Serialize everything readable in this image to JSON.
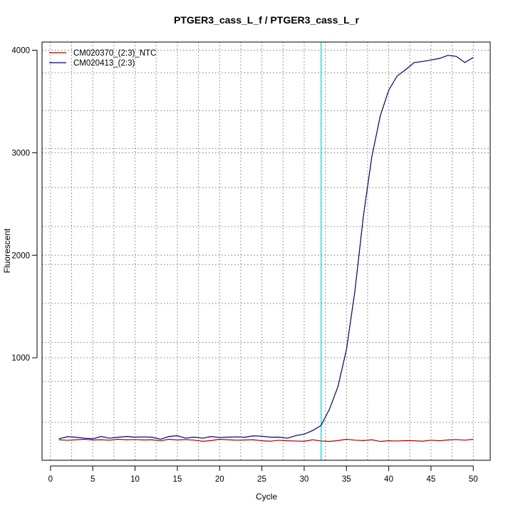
{
  "chart_data": {
    "type": "line",
    "title": "PTGER3_cass_L_f / PTGER3_cass_L_r",
    "xlabel": "Cycle",
    "ylabel": "Fluorescent",
    "xlim": [
      -1,
      52
    ],
    "ylim": [
      0,
      4080
    ],
    "x_ticks": [
      0,
      5,
      10,
      15,
      20,
      25,
      30,
      35,
      40,
      45,
      50
    ],
    "y_ticks": [
      1000,
      2000,
      3000,
      4000
    ],
    "grid_x": [
      2.5,
      7.5,
      12.5,
      17.5,
      22.5,
      27.5,
      32.5,
      37.5,
      42.5,
      47.5
    ],
    "grid_y": [
      370,
      770,
      1150,
      1530,
      1910,
      2280,
      2660,
      3040,
      3410,
      3780
    ],
    "grid": true,
    "legend_position": "top-left",
    "threshold": {
      "x": 32,
      "color": "#00e0e0"
    },
    "x": [
      1,
      2,
      3,
      4,
      5,
      6,
      7,
      8,
      9,
      10,
      11,
      12,
      13,
      14,
      15,
      16,
      17,
      18,
      19,
      20,
      21,
      22,
      23,
      24,
      25,
      26,
      27,
      28,
      29,
      30,
      31,
      32,
      33,
      34,
      35,
      36,
      37,
      38,
      39,
      40,
      41,
      42,
      43,
      44,
      45,
      46,
      47,
      48,
      49,
      50
    ],
    "series": [
      {
        "name": "CM020370_(2:3)_NTC",
        "color": "#aa0000",
        "values": [
          200,
          195,
          200,
          205,
          198,
          200,
          196,
          205,
          200,
          202,
          198,
          200,
          190,
          205,
          198,
          202,
          196,
          185,
          192,
          205,
          200,
          196,
          198,
          200,
          190,
          186,
          195,
          190,
          188,
          185,
          200,
          188,
          184,
          192,
          205,
          196,
          192,
          200,
          184,
          190,
          188,
          192,
          190,
          186,
          196,
          190,
          198,
          202,
          196,
          205
        ]
      },
      {
        "name": "CM020413_(2:3)",
        "color": "#00007a",
        "values": [
          210,
          230,
          225,
          215,
          210,
          232,
          215,
          225,
          232,
          225,
          228,
          225,
          205,
          232,
          240,
          215,
          226,
          215,
          232,
          222,
          226,
          228,
          225,
          238,
          235,
          225,
          226,
          215,
          240,
          255,
          290,
          340,
          500,
          720,
          1080,
          1650,
          2380,
          2960,
          3360,
          3610,
          3750,
          3810,
          3880,
          3890,
          3905,
          3920,
          3950,
          3940,
          3880,
          3930
        ]
      }
    ]
  }
}
